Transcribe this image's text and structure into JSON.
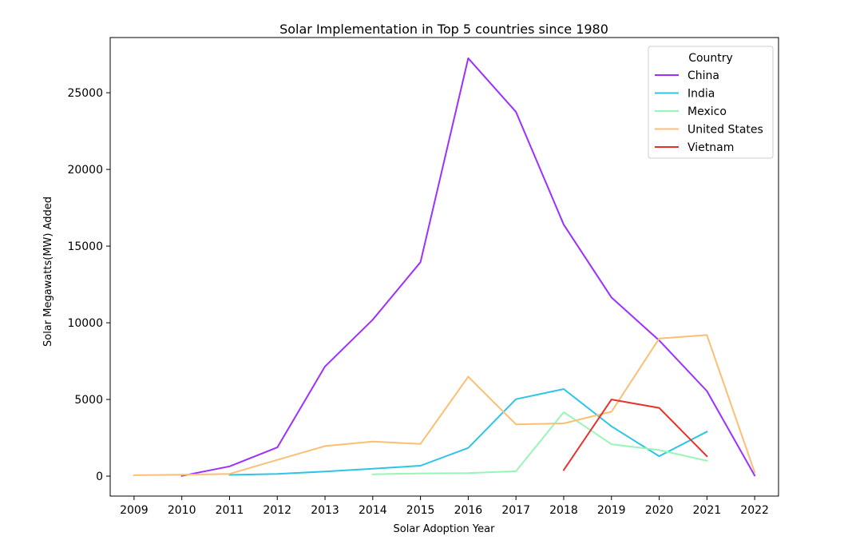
{
  "chart_data": {
    "type": "line",
    "title": "Solar Implementation in Top 5 countries since 1980",
    "xlabel": "Solar Adoption Year",
    "ylabel": "Solar Megawatts(MW) Added",
    "x": [
      2009,
      2010,
      2011,
      2012,
      2013,
      2014,
      2015,
      2016,
      2017,
      2018,
      2019,
      2020,
      2021,
      2022
    ],
    "xlim": [
      2008.5,
      2022.5
    ],
    "ylim": [
      -1300,
      28600
    ],
    "yticks": [
      0,
      5000,
      10000,
      15000,
      20000,
      25000
    ],
    "grid": false,
    "legend_title": "Country",
    "legend_position": "top-right",
    "series": [
      {
        "name": "China",
        "color": "#9b30ff",
        "x": [
          2010,
          2011,
          2012,
          2013,
          2014,
          2015,
          2016,
          2017,
          2018,
          2019,
          2020,
          2021,
          2022
        ],
        "values": [
          20,
          640,
          1870,
          7150,
          10200,
          13950,
          27250,
          23750,
          16400,
          11650,
          8850,
          5550,
          40
        ]
      },
      {
        "name": "India",
        "color": "#2ec4e6",
        "x": [
          2011,
          2012,
          2013,
          2014,
          2015,
          2016,
          2017,
          2018,
          2019,
          2020,
          2021
        ],
        "values": [
          80,
          150,
          300,
          480,
          680,
          1840,
          5020,
          5680,
          3250,
          1300,
          2900
        ]
      },
      {
        "name": "Mexico",
        "color": "#98f5b8",
        "x": [
          2014,
          2015,
          2016,
          2017,
          2018,
          2019,
          2020,
          2021
        ],
        "values": [
          120,
          180,
          200,
          320,
          4170,
          2080,
          1700,
          1000
        ]
      },
      {
        "name": "United States",
        "color": "#fbbf74",
        "x": [
          2009,
          2010,
          2011,
          2012,
          2013,
          2014,
          2015,
          2016,
          2017,
          2018,
          2019,
          2020,
          2021,
          2022
        ],
        "values": [
          60,
          90,
          150,
          1060,
          1960,
          2250,
          2100,
          6480,
          3380,
          3440,
          4200,
          8970,
          9200,
          250
        ]
      },
      {
        "name": "Vietnam",
        "color": "#e8302a",
        "x": [
          2018,
          2019,
          2020,
          2021
        ],
        "values": [
          400,
          5000,
          4450,
          1300
        ]
      }
    ]
  }
}
